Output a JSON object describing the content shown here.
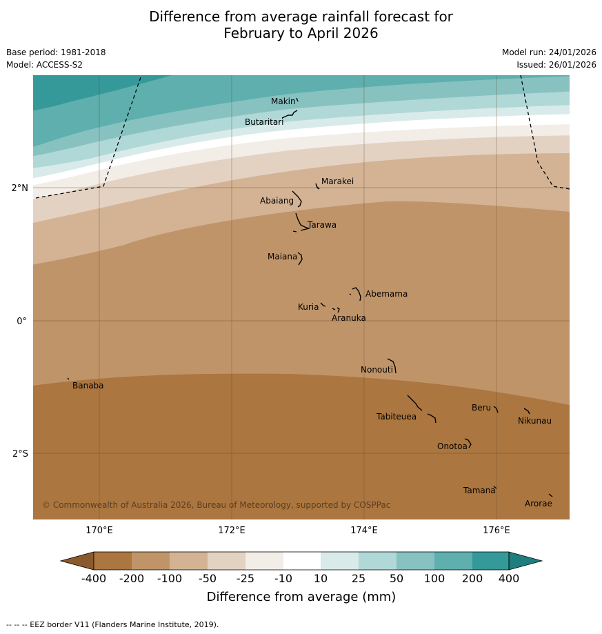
{
  "title": {
    "line1": "Difference from average rainfall forecast for",
    "line2": "February to April 2026"
  },
  "meta": {
    "base_period": "Base period: 1981-2018",
    "model": "Model: ACCESS-S2",
    "model_run": "Model run: 24/01/2026",
    "issued": "Issued: 26/01/2026"
  },
  "map": {
    "copyright": "© Commonwealth of Australia 2026, Bureau of Meteorology, supported by COSPPac",
    "lat_labels": [
      "2°N",
      "0°",
      "2°S"
    ],
    "lon_labels": [
      "170°E",
      "172°E",
      "174°E",
      "176°E"
    ],
    "places": [
      {
        "name": "Makin"
      },
      {
        "name": "Butaritari"
      },
      {
        "name": "Marakei"
      },
      {
        "name": "Abaiang"
      },
      {
        "name": "Tarawa"
      },
      {
        "name": "Maiana"
      },
      {
        "name": "Abemama"
      },
      {
        "name": "Kuria"
      },
      {
        "name": "Aranuka"
      },
      {
        "name": "Nonouti"
      },
      {
        "name": "Banaba"
      },
      {
        "name": "Beru"
      },
      {
        "name": "Tabiteuea"
      },
      {
        "name": "Nikunau"
      },
      {
        "name": "Onotoa"
      },
      {
        "name": "Tamana"
      },
      {
        "name": "Arorae"
      }
    ]
  },
  "legend": {
    "title": "Difference from average (mm)",
    "ticks": [
      "-400",
      "-200",
      "-100",
      "-50",
      "-25",
      "-10",
      "10",
      "25",
      "50",
      "100",
      "200",
      "400"
    ],
    "colors": {
      "lt_minus400": "#8a5a2c",
      "m400_m200": "#ab763f",
      "m200_m100": "#c09469",
      "m100_m50": "#d3b394",
      "m50_m25": "#e3d2c2",
      "m25_m10": "#f2ede7",
      "m10_10": "#ffffff",
      "p10_25": "#d8ebea",
      "p25_50": "#b0d8d7",
      "p50_100": "#87c2c1",
      "p100_200": "#5eafad",
      "p200_400": "#35999a",
      "gt_400": "#1e7d7e"
    }
  },
  "footnote": "--  --  -- EEZ border V11 (Flanders Marine Institute, 2019)."
}
